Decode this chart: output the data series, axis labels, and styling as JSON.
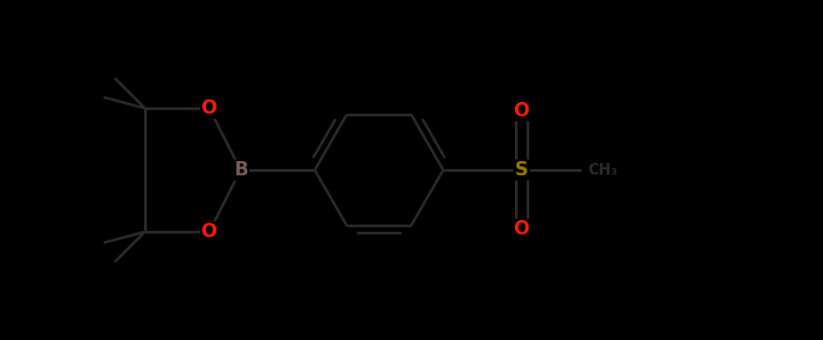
{
  "background_color": "#000000",
  "bond_color": "#1a1a1a",
  "atom_colors": {
    "B": "#7b5a5a",
    "O": "#ff1a00",
    "S": "#a07800",
    "C": "#1a1a1a"
  },
  "bond_width": 2.2,
  "font_size_atom": 15,
  "ring_r": 0.78,
  "mol_scale": 1.0
}
